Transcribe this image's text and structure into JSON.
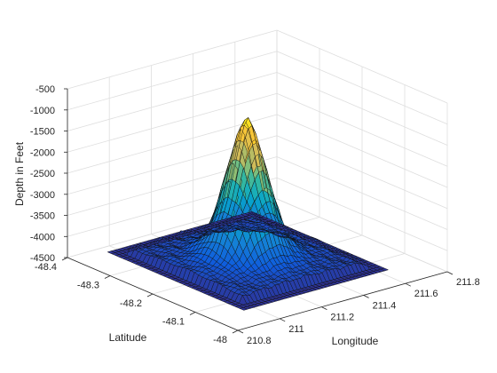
{
  "chart_data": {
    "type": "surface",
    "title": "",
    "xlabel": "Longitude",
    "ylabel": "Latitude",
    "zlabel": "Depth in Feet",
    "x_ticks": [
      "210.8",
      "211",
      "211.2",
      "211.4",
      "211.6",
      "211.8"
    ],
    "y_ticks": [
      "-48",
      "-48.1",
      "-48.2",
      "-48.3",
      "-48.4"
    ],
    "z_ticks": [
      "-4500",
      "-4000",
      "-3500",
      "-3000",
      "-2500",
      "-2000",
      "-1500",
      "-1000",
      "-500"
    ],
    "xlim": [
      210.8,
      211.8
    ],
    "ylim": [
      -48.4,
      -48.0
    ],
    "zlim": [
      -4500,
      -500
    ],
    "colormap": "parula",
    "colormap_colors": [
      "#352a87",
      "#0f5cdd",
      "#1481d6",
      "#06a4ca",
      "#2eb7a4",
      "#87bf77",
      "#d1bb59",
      "#fec832",
      "#f9fb0e"
    ],
    "grid": true,
    "seamount_peak": {
      "longitude": 211.25,
      "latitude": -48.2,
      "depth": -900
    },
    "base_depth": -4300
  }
}
